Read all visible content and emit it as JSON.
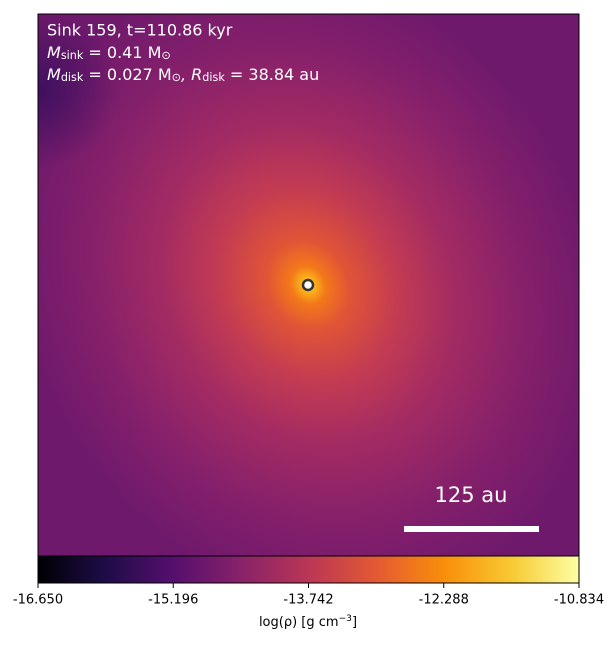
{
  "chart_data": {
    "type": "density-map",
    "annotations": [
      {
        "text": "Sink 159, t=110.86 kyr"
      },
      {
        "parts": [
          {
            "t": "M"
          },
          {
            "t": "sink",
            "sub": true
          },
          {
            "t": " = 0.41 M"
          },
          {
            "t": "⊙",
            "sub": true
          }
        ]
      },
      {
        "parts": [
          {
            "t": "M"
          },
          {
            "t": "disk",
            "sub": true
          },
          {
            "t": " = 0.027 M"
          },
          {
            "t": "⊙",
            "sub": true
          },
          {
            "t": ", R"
          },
          {
            "t": "disk",
            "sub": true
          },
          {
            "t": " = 38.84 au"
          }
        ]
      }
    ],
    "scale_bar": {
      "label": "125 au"
    },
    "colorbar": {
      "lim": [
        -16.65,
        -10.834
      ],
      "ticks": [
        {
          "value": -16.65,
          "label": "-16.650"
        },
        {
          "value": -15.196,
          "label": "-15.196"
        },
        {
          "value": -13.742,
          "label": "-13.742"
        },
        {
          "value": -12.288,
          "label": "-12.288"
        },
        {
          "value": -10.834,
          "label": "-10.834"
        }
      ],
      "label": {
        "parts": [
          {
            "t": "log(ρ) [g cm"
          },
          {
            "t": "−3",
            "sup": true
          },
          {
            "t": "]"
          }
        ]
      },
      "colormap": "inferno"
    }
  }
}
